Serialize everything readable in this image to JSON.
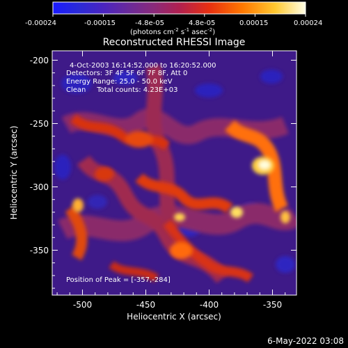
{
  "colorbar": {
    "tick_labels": [
      "-0.00024",
      "-0.00015",
      "-4.8e-05",
      "4.8e-05",
      "0.00015",
      "0.00024"
    ],
    "unit_prefix": "(photons cm",
    "unit_exp1": "-2",
    "unit_mid": " s",
    "unit_exp2": "-1",
    "unit_mid2": " asec",
    "unit_exp3": "-2",
    "unit_suffix": ")"
  },
  "plot": {
    "title": "Reconstructed RHESSI Image",
    "xlabel": "Heliocentric X (arcsec)",
    "ylabel": "Heliocentric Y (arcsec)",
    "xticks": [
      "-500",
      "-450",
      "-400",
      "-350"
    ],
    "yticks": [
      "-200",
      "-250",
      "-300",
      "-350"
    ],
    "xlim": [
      -525,
      -332
    ],
    "ylim": [
      -385,
      -193
    ]
  },
  "annotations": {
    "time_range": "4-Oct-2003 16:14:52.000 to 16:20:52.000",
    "detectors": "Detectors: 3F 4F 5F 6F 7F 8F, Att 0",
    "energy": "Energy Range: 25.0 - 50.0 keV",
    "clean": "Clean     Total counts: 4.23E+03",
    "peak": "Position of Peak = [-357,-284]"
  },
  "footer": {
    "timestamp": "6-May-2022 03:08"
  }
}
